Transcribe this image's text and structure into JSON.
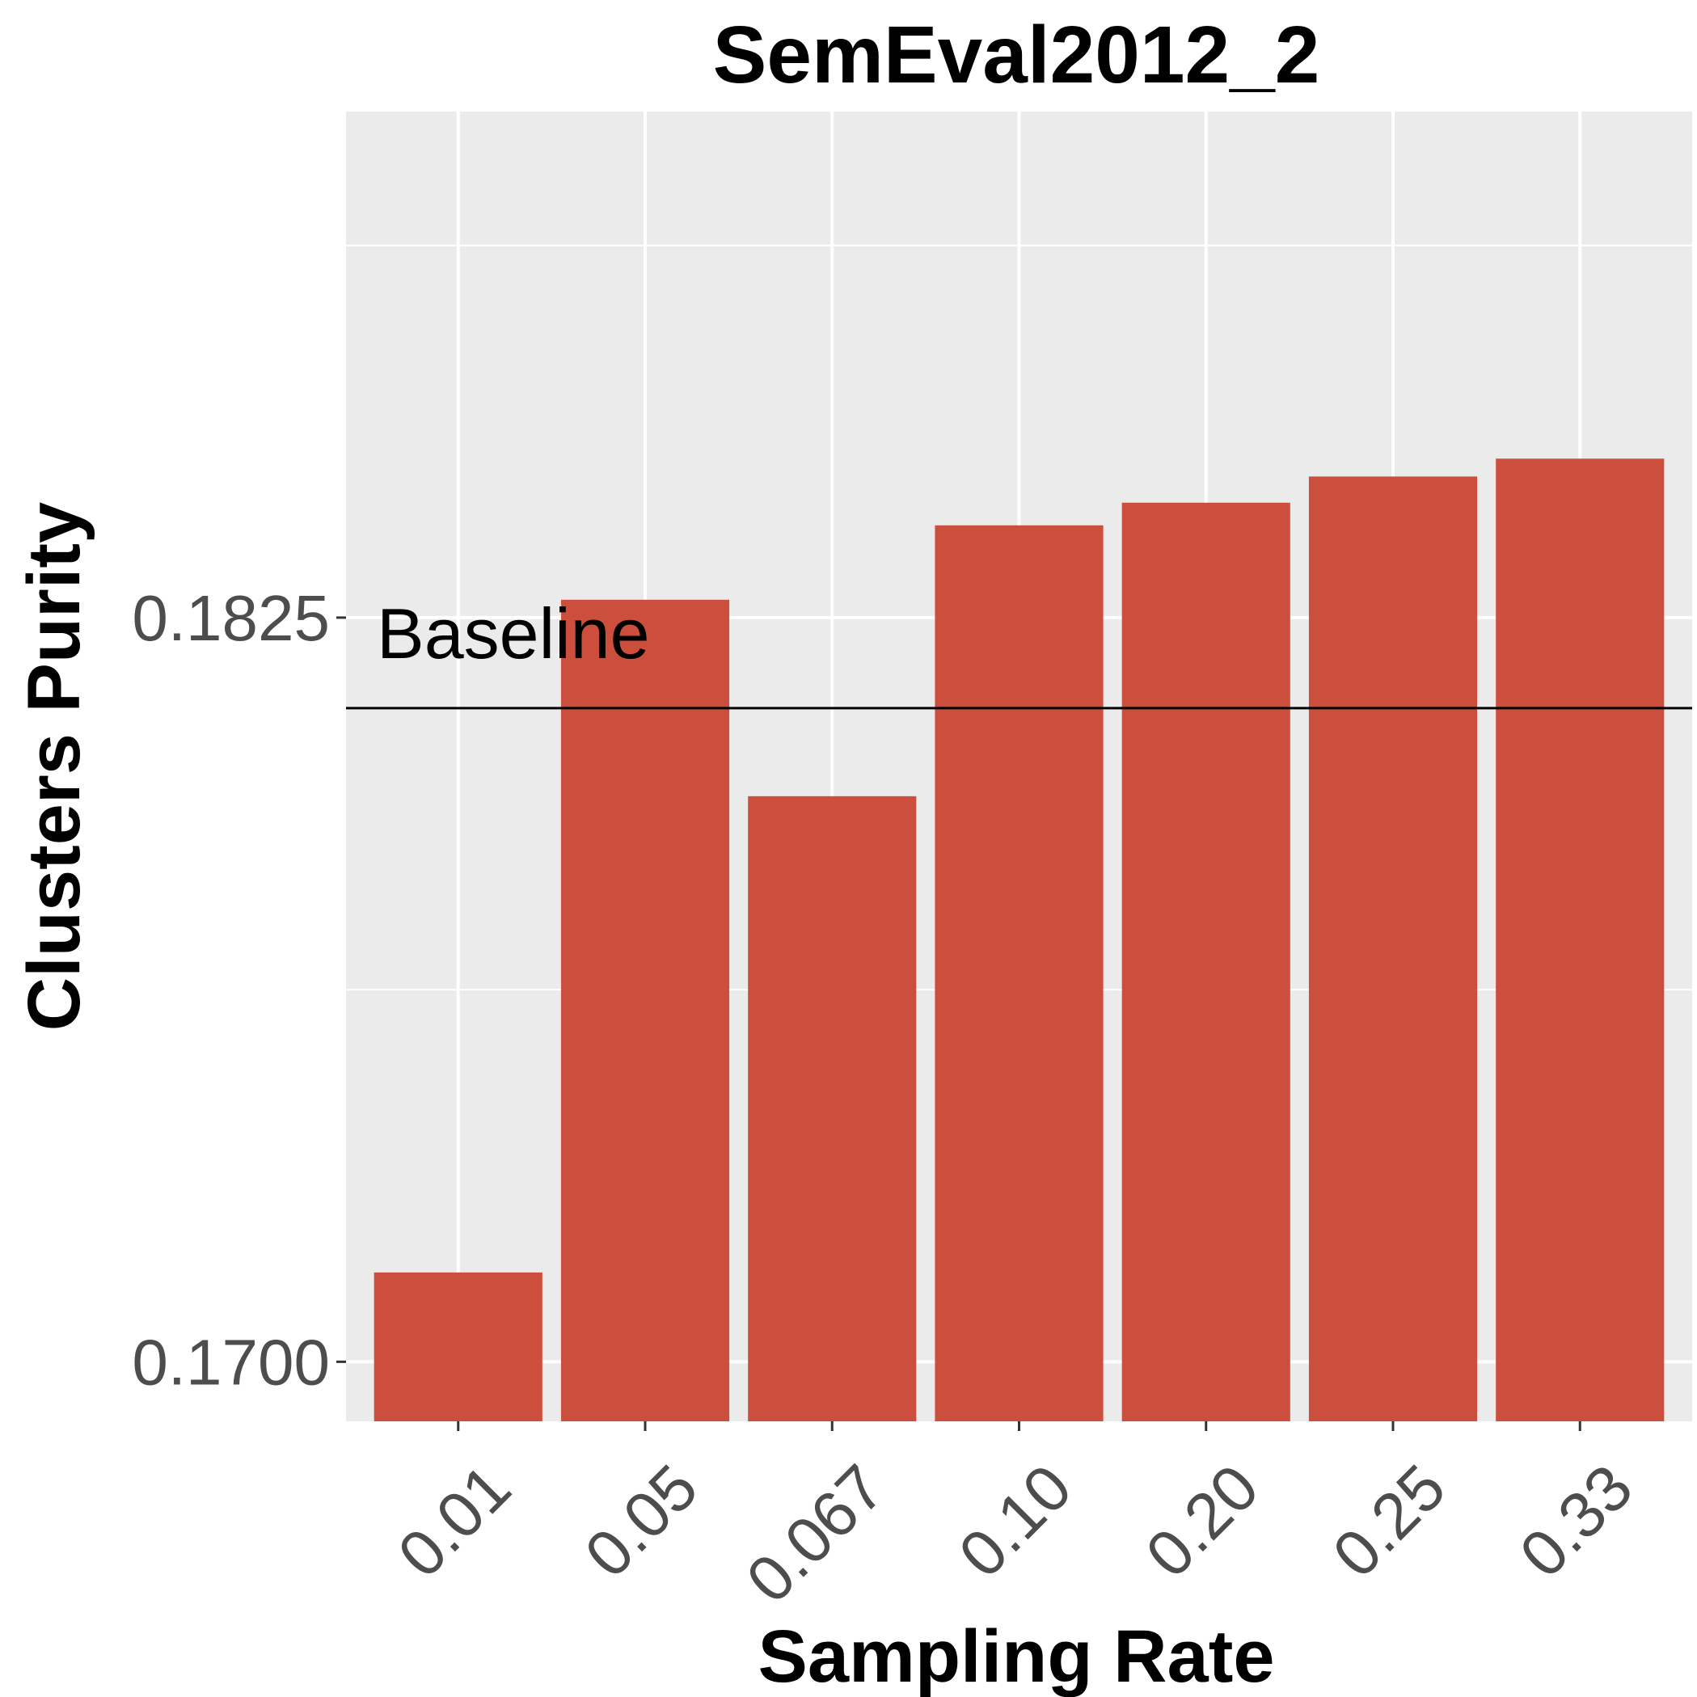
{
  "chart_data": {
    "type": "bar",
    "title": "SemEval2012_2",
    "xlabel": "Sampling Rate",
    "ylabel": "Clusters Purity",
    "categories": [
      "0.01",
      "0.05",
      "0.067",
      "0.10",
      "0.20",
      "0.25",
      "0.33"
    ],
    "values": [
      0.1715,
      0.1828,
      0.1795,
      0.18405,
      0.18443,
      0.18487,
      0.18517
    ],
    "ylim": [
      0.169,
      0.191
    ],
    "yticks": [
      0.17,
      0.1825
    ],
    "ytick_labels": [
      "0.1700",
      "0.1825"
    ],
    "grid": true,
    "baseline": {
      "label": "Baseline",
      "value": 0.18098
    },
    "colors": {
      "bar": "#cc4e3c",
      "panel": "#ebebeb",
      "grid": "#ffffff",
      "baseline": "#000000"
    }
  }
}
